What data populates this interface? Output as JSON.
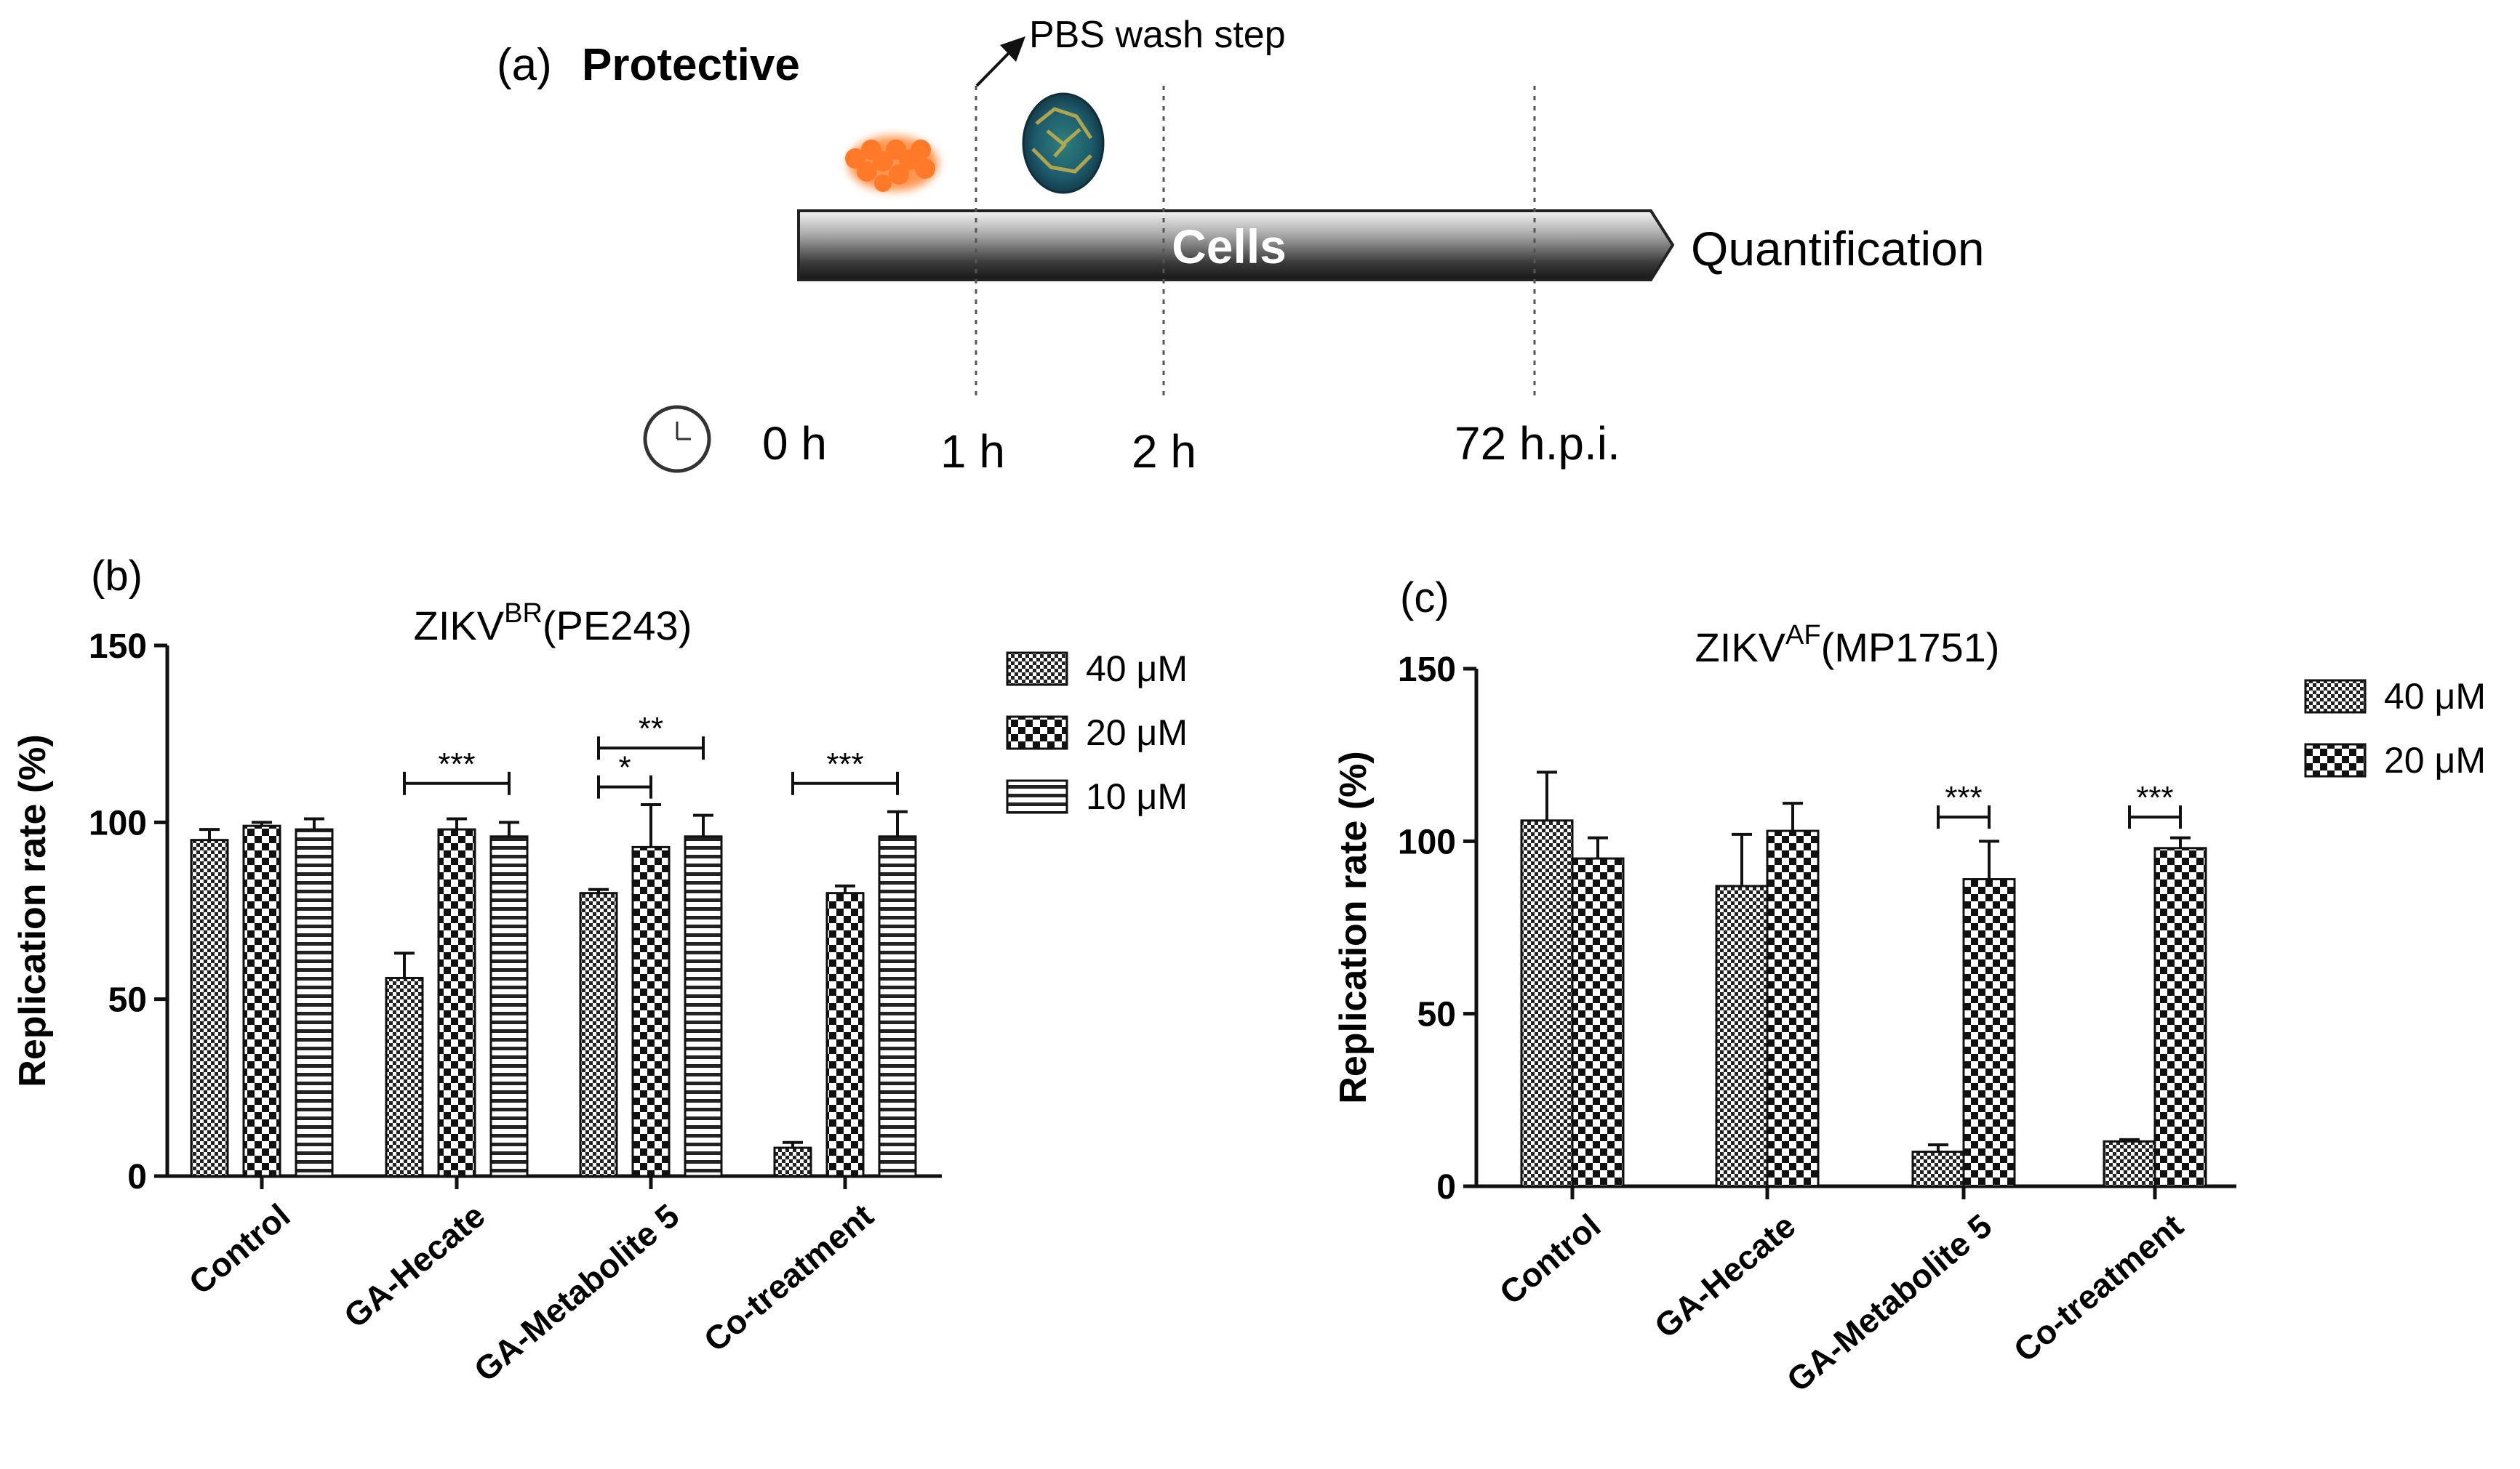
{
  "schematic": {
    "panel_label": "(a)",
    "title": "Protective",
    "wash_label": "PBS wash step",
    "arrow_label": "Cells",
    "end_label": "Quantification",
    "time_labels": [
      "0 h",
      "1 h",
      "2 h",
      "72 h.p.i."
    ],
    "icons": [
      "clock-icon",
      "compound-molecule-icon",
      "virus-particle-icon"
    ]
  },
  "chart_data": [
    {
      "type": "bar",
      "panel_label": "(b)",
      "title": "ZIKV",
      "title_sup": "BR",
      "title_suffix": "(PE243)",
      "xlabel": "",
      "ylabel": "Replication rate (%)",
      "ylim": [
        0,
        150
      ],
      "yticks": [
        "0",
        "50",
        "100",
        "150"
      ],
      "grid": false,
      "legend_position": "top-right",
      "categories": [
        "Control",
        "GA-Hecate",
        "GA-Metabolite 5",
        "Co-treatment"
      ],
      "series": [
        {
          "name": "40 μM",
          "pattern": "fine-check",
          "values": [
            95,
            56,
            80,
            8
          ],
          "errors": [
            3,
            7,
            1,
            1.5
          ]
        },
        {
          "name": "20 μM",
          "pattern": "coarse-check",
          "values": [
            99,
            98,
            93,
            80
          ],
          "errors": [
            1,
            3,
            12,
            2
          ]
        },
        {
          "name": "10 μM",
          "pattern": "horizontal-stripes",
          "values": [
            98,
            96,
            96,
            96
          ],
          "errors": [
            3,
            4,
            6,
            7
          ]
        }
      ],
      "significance": [
        {
          "from": [
            1,
            0
          ],
          "to": [
            1,
            2
          ],
          "label": "***",
          "y": 111
        },
        {
          "from": [
            2,
            0
          ],
          "to": [
            2,
            1
          ],
          "label": "*",
          "y": 110
        },
        {
          "from": [
            2,
            0
          ],
          "to": [
            2,
            2
          ],
          "label": "**",
          "y": 121
        },
        {
          "from": [
            3,
            0
          ],
          "to": [
            3,
            2
          ],
          "label": "***",
          "y": 111
        }
      ]
    },
    {
      "type": "bar",
      "panel_label": "(c)",
      "title": "ZIKV",
      "title_sup": "AF",
      "title_suffix": "(MP1751)",
      "xlabel": "",
      "ylabel": "Replication rate (%)",
      "ylim": [
        0,
        150
      ],
      "yticks": [
        "0",
        "50",
        "100",
        "150"
      ],
      "grid": false,
      "legend_position": "top-right",
      "categories": [
        "Control",
        "GA-Hecate",
        "GA-Metabolite 5",
        "Co-treatment"
      ],
      "series": [
        {
          "name": "40 μM",
          "pattern": "fine-check",
          "values": [
            106,
            87,
            10,
            13
          ],
          "errors": [
            14,
            15,
            2,
            0.5
          ]
        },
        {
          "name": "20 μM",
          "pattern": "coarse-check",
          "values": [
            95,
            103,
            89,
            98
          ],
          "errors": [
            6,
            8,
            11,
            3
          ]
        }
      ],
      "significance": [
        {
          "from": [
            2,
            0
          ],
          "to": [
            2,
            1
          ],
          "label": "***",
          "y": 107
        },
        {
          "from": [
            3,
            0
          ],
          "to": [
            3,
            1
          ],
          "label": "***",
          "y": 107
        }
      ]
    }
  ]
}
